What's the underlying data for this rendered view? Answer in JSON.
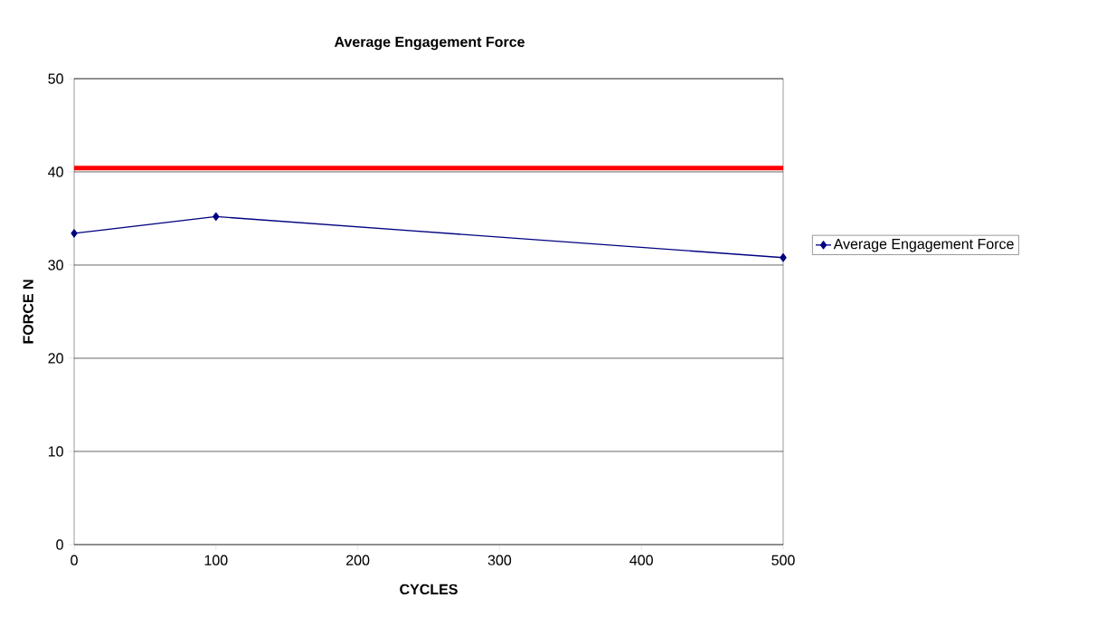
{
  "chart_data": {
    "type": "line",
    "title": "Average Engagement Force",
    "xlabel": "CYCLES",
    "ylabel": "FORCE N",
    "x": [
      0,
      100,
      500
    ],
    "series": [
      {
        "name": "Average Engagement Force",
        "color": "#000080",
        "values": [
          33.4,
          35.2,
          30.8
        ]
      }
    ],
    "xlim": [
      0,
      500
    ],
    "xticks": [
      0,
      100,
      200,
      300,
      400,
      500
    ],
    "ylim": [
      0,
      50
    ],
    "yticks": [
      0,
      10,
      20,
      30,
      40,
      50
    ],
    "ref_lines": [
      {
        "axis": "y",
        "value": 40.4,
        "color": "#ff0000"
      }
    ],
    "grid": "y",
    "legend": "right",
    "marker": "diamond",
    "line_style": "solid"
  }
}
